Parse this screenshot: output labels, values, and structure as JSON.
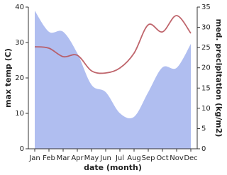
{
  "chart_data": {
    "type": "combo",
    "categories": [
      "Jan",
      "Feb",
      "Mar",
      "Apr",
      "May",
      "Jun",
      "Jul",
      "Aug",
      "Sep",
      "Oct",
      "Nov",
      "Dec"
    ],
    "xlabel": "date (month)",
    "ylabel": "max temp (C)",
    "y2label": "med. precipitation (kg/m2)",
    "ylim": [
      0,
      40
    ],
    "yticks": [
      0,
      10,
      20,
      30,
      40
    ],
    "y2lim": [
      0,
      35
    ],
    "y2ticks": [
      0,
      5,
      10,
      15,
      20,
      25,
      30,
      35
    ],
    "series": [
      {
        "name": "med. precipitation",
        "type": "area",
        "axis": "y2",
        "color": "#b0bef0",
        "values": [
          34.1,
          28.9,
          28.9,
          23.6,
          15.8,
          14,
          8.8,
          7.9,
          14,
          20.1,
          20,
          25.9
        ]
      },
      {
        "name": "max temp",
        "type": "line",
        "axis": "y",
        "color": "#b8545c",
        "values": [
          28.8,
          28.4,
          26,
          26.4,
          22,
          21.4,
          22.8,
          27,
          35,
          33,
          37.6,
          32.6
        ]
      }
    ]
  }
}
